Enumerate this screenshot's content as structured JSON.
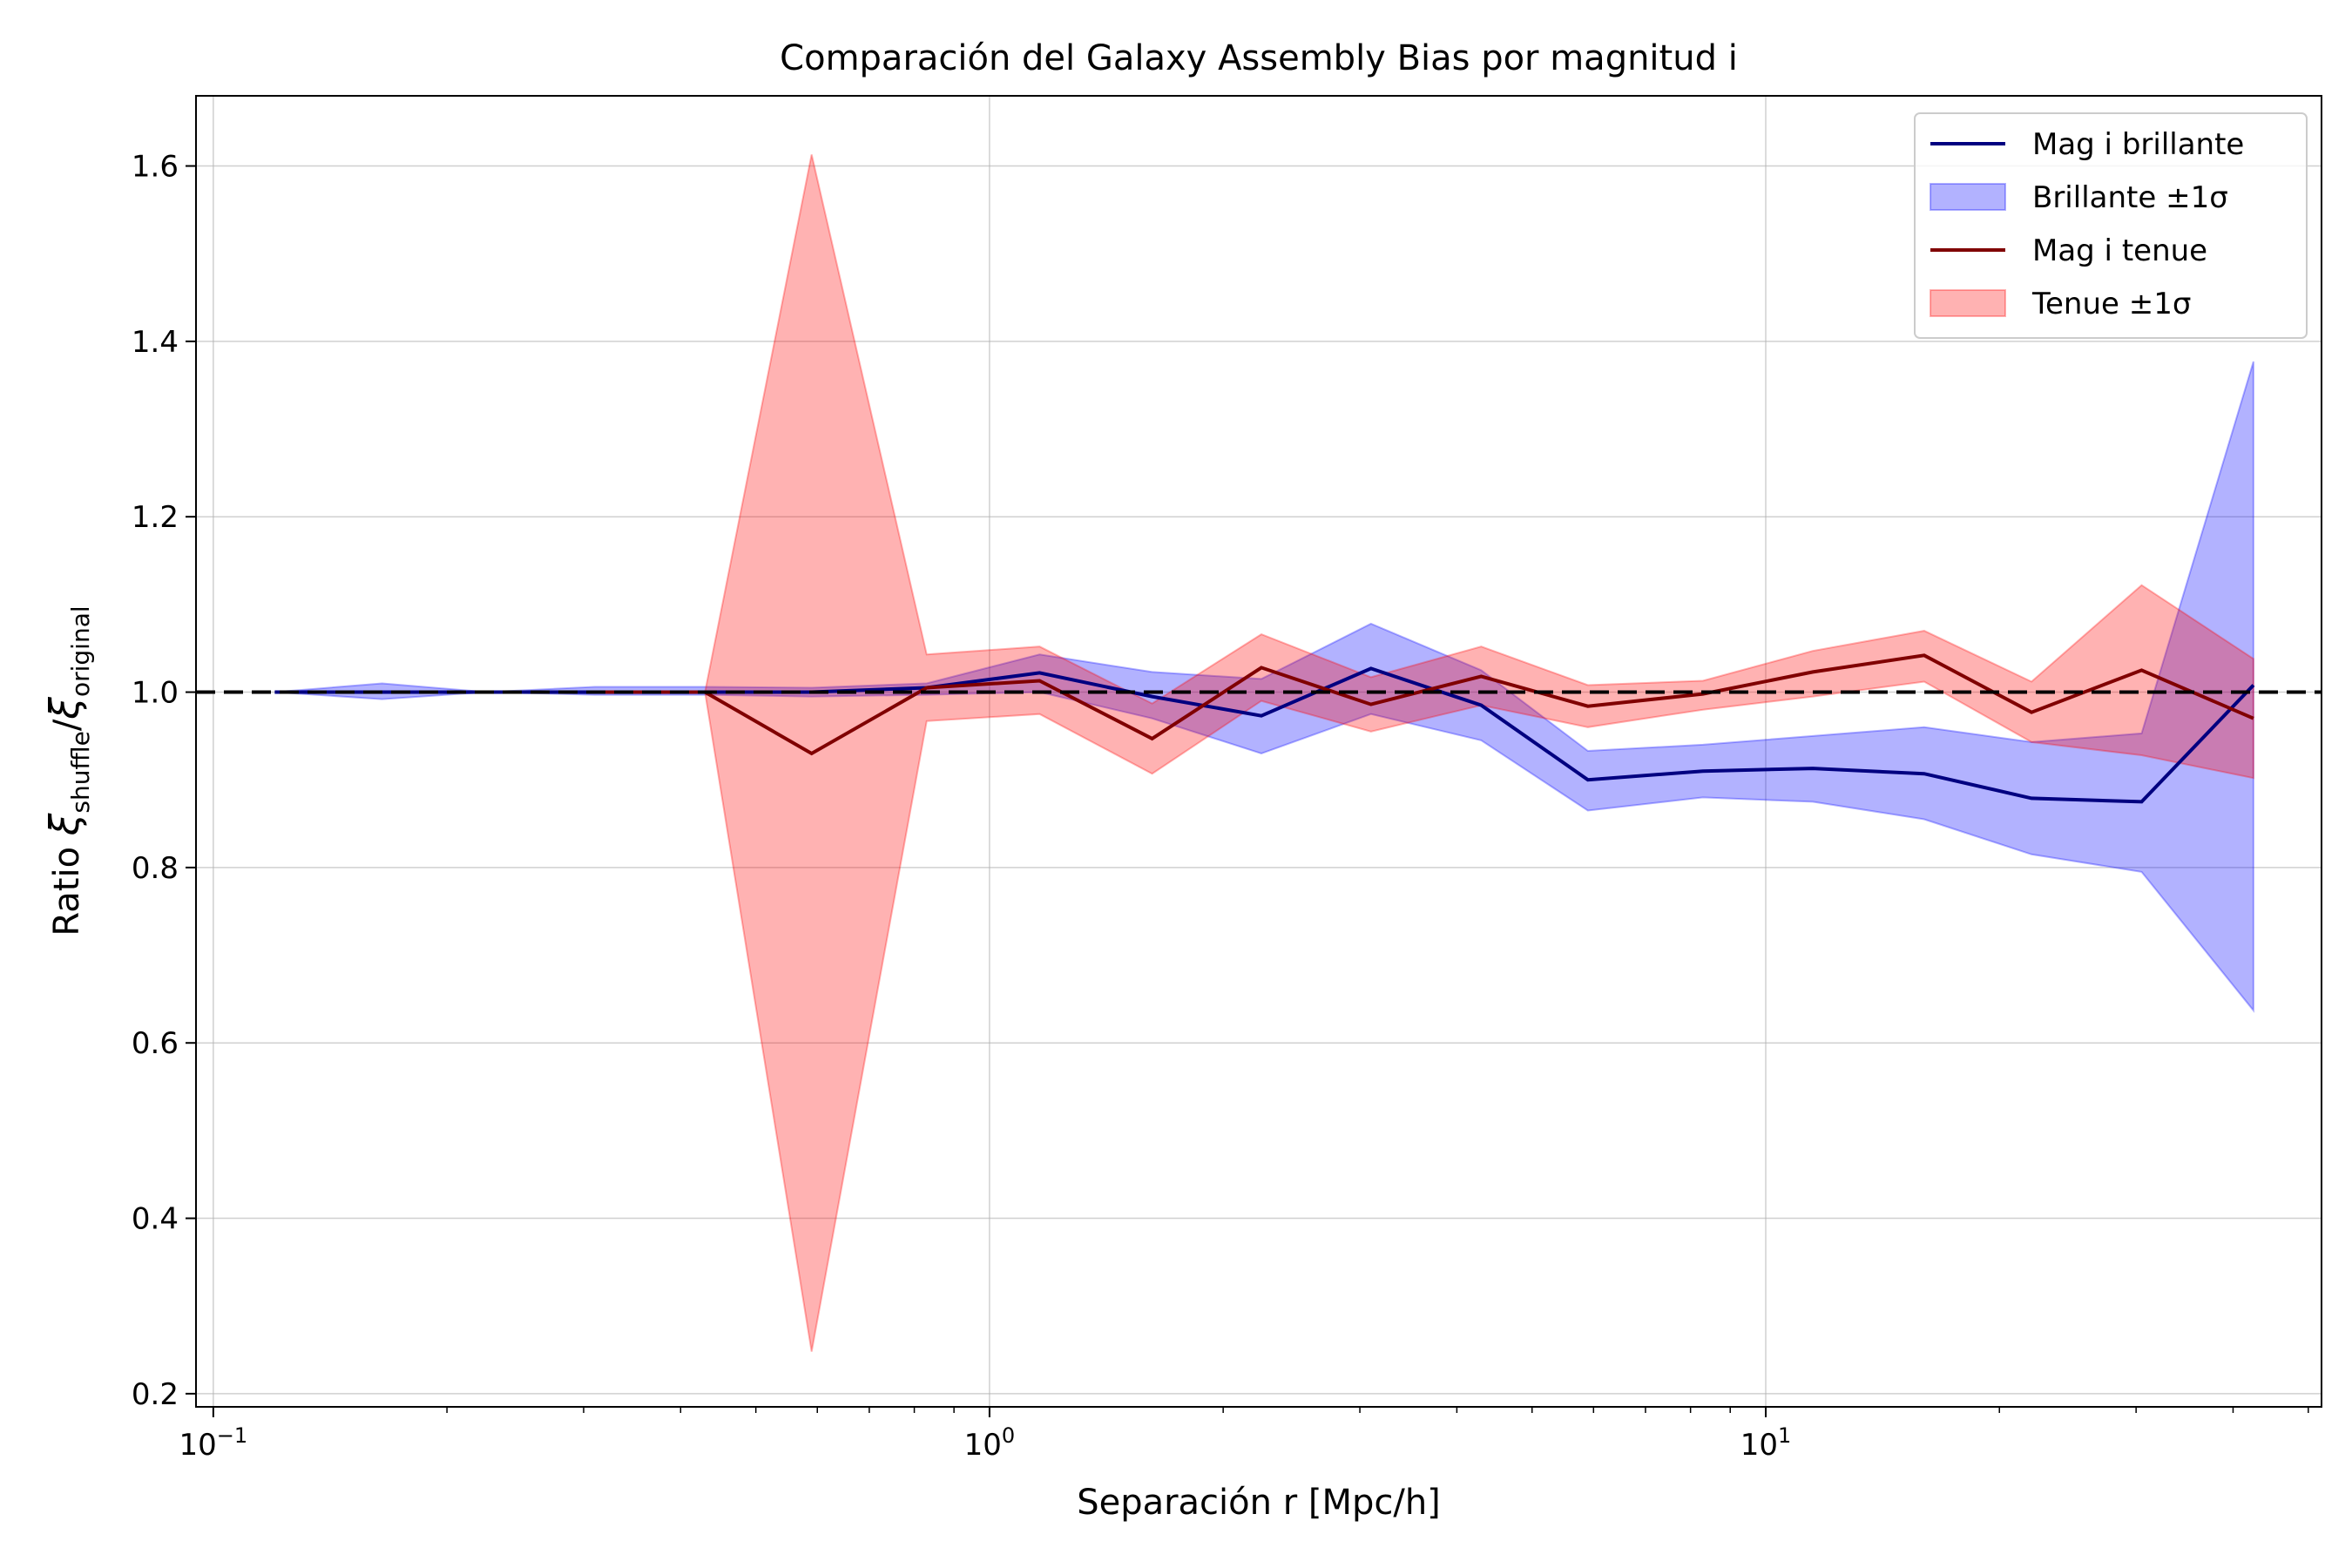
{
  "chart_data": {
    "type": "line",
    "title": "Comparación del Galaxy Assembly Bias por magnitud i",
    "xlabel": "Separación r [Mpc/h]",
    "ylabel": {
      "prefix": "Ratio ",
      "symbol": "ξ",
      "sub_num": "shuffle",
      "sub_den": "original"
    },
    "x_scale": "log",
    "xlim": [
      0.095,
      52
    ],
    "ylim": [
      0.185,
      1.68
    ],
    "grid": true,
    "legend_position": "upper right",
    "x_ticks": [
      {
        "value": 0.1,
        "base": "10",
        "exp": "−1"
      },
      {
        "value": 1,
        "base": "10",
        "exp": "0"
      },
      {
        "value": 10,
        "base": "10",
        "exp": "1"
      }
    ],
    "y_ticks": [
      {
        "value": 0.2,
        "label": "0.2"
      },
      {
        "value": 0.4,
        "label": "0.4"
      },
      {
        "value": 0.6,
        "label": "0.6"
      },
      {
        "value": 0.8,
        "label": "0.8"
      },
      {
        "value": 1.0,
        "label": "1.0"
      },
      {
        "value": 1.2,
        "label": "1.2"
      },
      {
        "value": 1.4,
        "label": "1.4"
      },
      {
        "value": 1.6,
        "label": "1.6"
      }
    ],
    "reference_line": {
      "y": 1.0,
      "style": "dashed",
      "color": "#000000"
    },
    "x": [
      0.12,
      0.165,
      0.225,
      0.31,
      0.43,
      0.59,
      0.83,
      1.16,
      1.62,
      2.24,
      3.1,
      4.3,
      5.9,
      8.3,
      11.5,
      16.0,
      22.0,
      30.5,
      42.5
    ],
    "series": [
      {
        "name": "Mag i brillante",
        "band_name": "Brillante ±1σ",
        "line_color": "#000080",
        "band_color": "#0000ff",
        "y": [
          1.0,
          1.0,
          1.0,
          1.0,
          1.0,
          1.0,
          1.005,
          1.022,
          0.995,
          0.973,
          1.027,
          0.985,
          0.9,
          0.91,
          0.913,
          0.907,
          0.879,
          0.875,
          1.008
        ],
        "lower": [
          1.0,
          0.992,
          1.0,
          0.997,
          0.997,
          0.995,
          0.997,
          1.0,
          0.97,
          0.93,
          0.975,
          0.945,
          0.865,
          0.88,
          0.875,
          0.855,
          0.815,
          0.795,
          0.637
        ],
        "upper": [
          1.0,
          1.01,
          1.0,
          1.006,
          1.006,
          1.005,
          1.01,
          1.043,
          1.023,
          1.015,
          1.078,
          1.025,
          0.933,
          0.94,
          0.95,
          0.96,
          0.943,
          0.953,
          1.377
        ]
      },
      {
        "name": "Mag i tenue",
        "band_name": "Tenue ±1σ",
        "line_color": "#800000",
        "band_color": "#ff0000",
        "y": [
          null,
          null,
          null,
          1.0,
          1.0,
          0.93,
          1.005,
          1.013,
          0.947,
          1.028,
          0.986,
          1.018,
          0.984,
          0.998,
          1.023,
          1.042,
          0.977,
          1.025,
          0.97
        ],
        "lower": [
          null,
          null,
          null,
          1.0,
          1.0,
          0.248,
          0.967,
          0.975,
          0.907,
          0.99,
          0.955,
          0.985,
          0.96,
          0.98,
          0.995,
          1.012,
          0.943,
          0.928,
          0.902
        ],
        "upper": [
          null,
          null,
          null,
          1.0,
          1.0,
          1.613,
          1.043,
          1.052,
          0.987,
          1.066,
          1.017,
          1.052,
          1.008,
          1.013,
          1.047,
          1.07,
          1.012,
          1.122,
          1.038
        ]
      }
    ]
  }
}
